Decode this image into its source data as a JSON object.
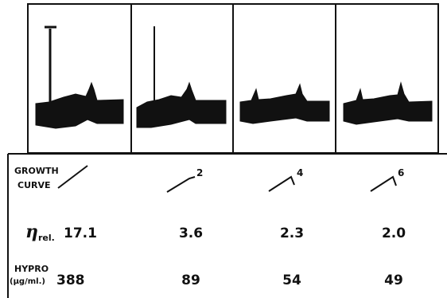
{
  "table": {
    "growth_curve": {
      "label": [
        "GROWTH",
        "CURVE"
      ],
      "superscripts": [
        "2",
        "4",
        "6"
      ]
    },
    "viscosity": {
      "symbol": "η",
      "subscript": "rel.",
      "values": [
        "17.1",
        "3.6",
        "2.3",
        "2.0"
      ]
    },
    "hypro": {
      "label": [
        "HYPRO",
        "(µg/ml.)"
      ],
      "values": [
        "388",
        "89",
        "54",
        "49"
      ]
    }
  }
}
